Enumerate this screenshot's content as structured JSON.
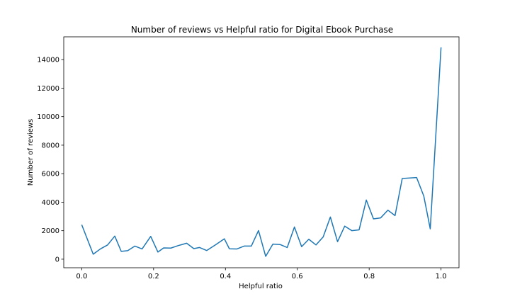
{
  "chart_data": {
    "type": "line",
    "title": "Number of reviews vs Helpful ratio for Digital Ebook Purchase",
    "xlabel": "Helpful ratio",
    "ylabel": "Number of reviews",
    "xlim": [
      -0.05,
      1.05
    ],
    "ylim": [
      -600,
      15600
    ],
    "xticks": [
      0.0,
      0.2,
      0.4,
      0.6,
      0.8,
      1.0
    ],
    "xtick_labels": [
      "0.0",
      "0.2",
      "0.4",
      "0.6",
      "0.8",
      "1.0"
    ],
    "yticks": [
      0,
      2000,
      4000,
      6000,
      8000,
      10000,
      12000,
      14000
    ],
    "ytick_labels": [
      "0",
      "2000",
      "4000",
      "6000",
      "8000",
      "10000",
      "12000",
      "14000"
    ],
    "grid": false,
    "colors": {
      "line": "#1f77b4",
      "axes": "#000000"
    },
    "series": [
      {
        "x": [
          0.0,
          0.032,
          0.052,
          0.072,
          0.092,
          0.11,
          0.128,
          0.148,
          0.168,
          0.192,
          0.212,
          0.228,
          0.248,
          0.268,
          0.292,
          0.312,
          0.328,
          0.348,
          0.372,
          0.397,
          0.411,
          0.432,
          0.452,
          0.472,
          0.492,
          0.512,
          0.532,
          0.552,
          0.572,
          0.592,
          0.612,
          0.632,
          0.652,
          0.672,
          0.692,
          0.712,
          0.732,
          0.752,
          0.772,
          0.792,
          0.812,
          0.832,
          0.852,
          0.872,
          0.892,
          0.932,
          0.952,
          0.97,
          1.0
        ],
        "values": [
          2420,
          350,
          720,
          1000,
          1620,
          550,
          600,
          920,
          720,
          1600,
          500,
          790,
          780,
          950,
          1120,
          740,
          820,
          610,
          1000,
          1430,
          730,
          720,
          920,
          920,
          2010,
          200,
          1060,
          1030,
          820,
          2260,
          880,
          1400,
          1000,
          1560,
          2960,
          1230,
          2320,
          2000,
          2060,
          4150,
          2830,
          2900,
          3440,
          3060,
          5660,
          5730,
          4430,
          2130,
          14860
        ]
      }
    ]
  }
}
